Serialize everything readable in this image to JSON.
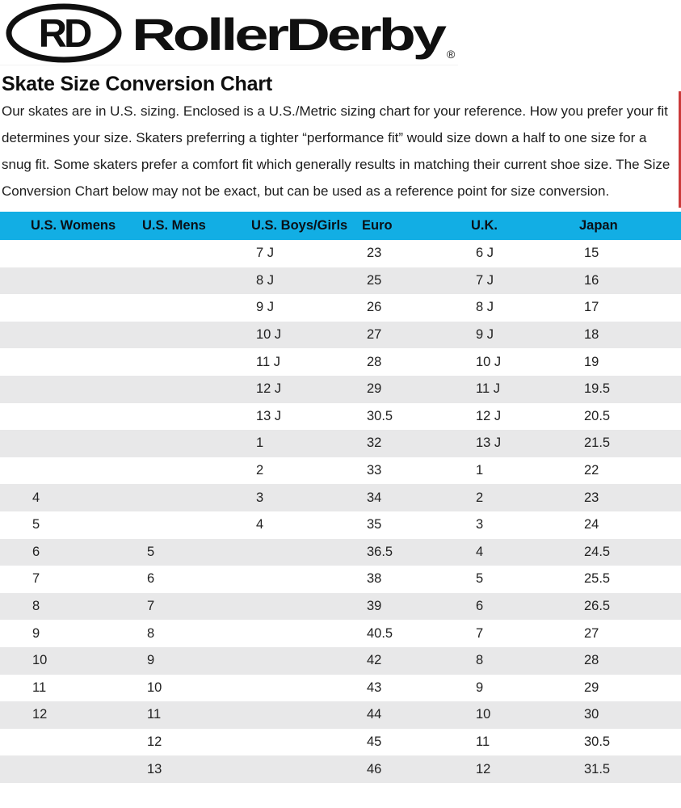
{
  "logo": {
    "monogram": "RD",
    "brand": "RollerDerby",
    "registered_mark": "®"
  },
  "heading": "Skate Size Conversion Chart",
  "intro": "Our skates are in U.S. sizing. Enclosed is a U.S./Metric sizing chart for your reference. How you prefer your fit determines your size. Skaters preferring a tighter “performance fit” would size down a half to one size for a snug fit. Some skaters prefer a comfort fit which generally results in matching their current shoe size. The Size Conversion Chart below may not be exact, but can be used as a reference point for size conversion.",
  "colors": {
    "header_blue": "#12aee4",
    "row_alt_gray": "#e8e8e9",
    "accent_red": "#cb3a3a",
    "logo_black": "#101010"
  },
  "table": {
    "headers": [
      "U.S. Womens",
      "U.S. Mens",
      "U.S. Boys/Girls",
      "Euro",
      "U.K.",
      "Japan"
    ],
    "rows": [
      [
        "",
        "",
        "7 J",
        "23",
        "6 J",
        "15"
      ],
      [
        "",
        "",
        "8 J",
        "25",
        "7 J",
        "16"
      ],
      [
        "",
        "",
        "9 J",
        "26",
        "8 J",
        "17"
      ],
      [
        "",
        "",
        "10 J",
        "27",
        "9 J",
        "18"
      ],
      [
        "",
        "",
        "11 J",
        "28",
        "10 J",
        "19"
      ],
      [
        "",
        "",
        "12 J",
        "29",
        "11 J",
        "19.5"
      ],
      [
        "",
        "",
        "13 J",
        "30.5",
        "12 J",
        "20.5"
      ],
      [
        "",
        "",
        "1",
        "32",
        "13 J",
        "21.5"
      ],
      [
        "",
        "",
        "2",
        "33",
        "1",
        "22"
      ],
      [
        "4",
        "",
        "3",
        "34",
        "2",
        "23"
      ],
      [
        "5",
        "",
        "4",
        "35",
        "3",
        "24"
      ],
      [
        "6",
        "5",
        "",
        "36.5",
        "4",
        "24.5"
      ],
      [
        "7",
        "6",
        "",
        "38",
        "5",
        "25.5"
      ],
      [
        "8",
        "7",
        "",
        "39",
        "6",
        "26.5"
      ],
      [
        "9",
        "8",
        "",
        "40.5",
        "7",
        "27"
      ],
      [
        "10",
        "9",
        "",
        "42",
        "8",
        "28"
      ],
      [
        "11",
        "10",
        "",
        "43",
        "9",
        "29"
      ],
      [
        "12",
        "11",
        "",
        "44",
        "10",
        "30"
      ],
      [
        "",
        "12",
        "",
        "45",
        "11",
        "30.5"
      ],
      [
        "",
        "13",
        "",
        "46",
        "12",
        "31.5"
      ]
    ]
  }
}
